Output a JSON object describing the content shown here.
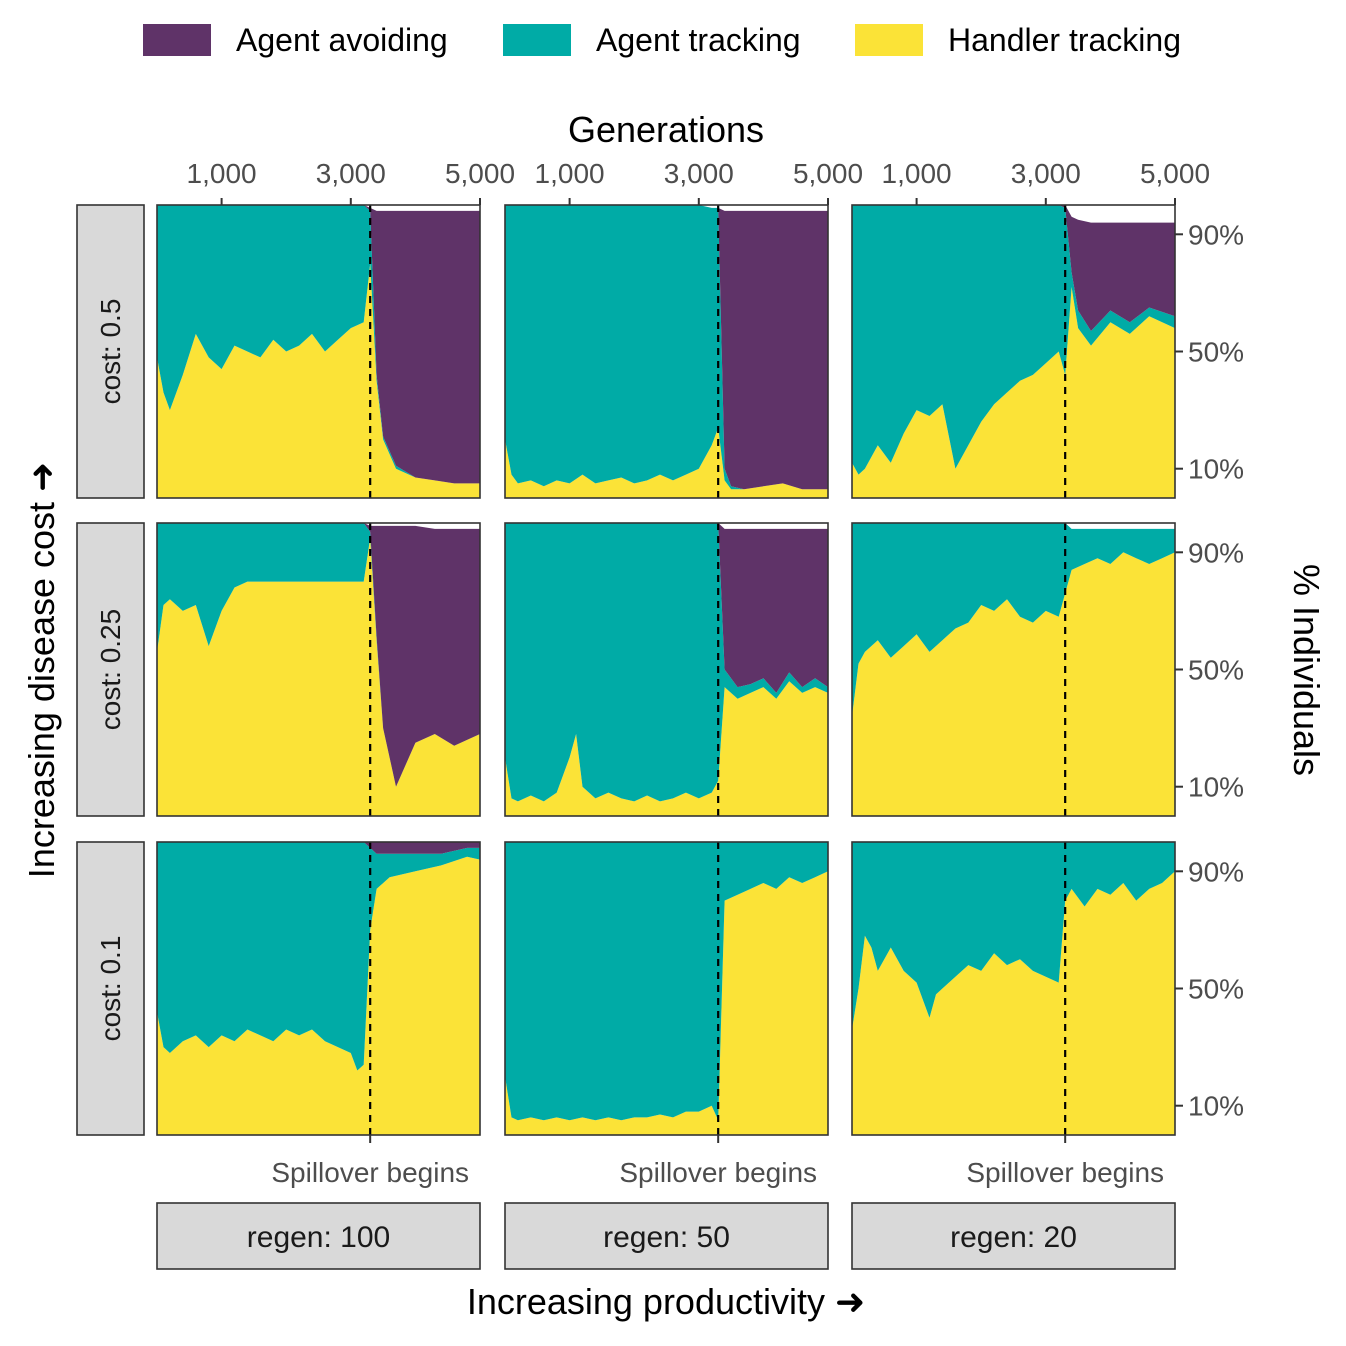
{
  "legend": {
    "items": [
      {
        "label": "Agent avoiding",
        "color": "#5f3368"
      },
      {
        "label": "Agent tracking",
        "color": "#00aba6"
      },
      {
        "label": "Handler tracking",
        "color": "#fbe337"
      }
    ]
  },
  "colors": {
    "strip_fill": "#d9d9d9",
    "panel_border": "#333333",
    "dashed_line": "#000000",
    "tick_text": "#4d4d4d"
  },
  "chart_data": {
    "type": "area",
    "stacked": true,
    "facet_grid": true,
    "x_axis_title": "Generations",
    "x_axis_position": "top",
    "x_ticks": [
      1000,
      3000,
      5000
    ],
    "x_tick_labels": [
      "1,000",
      "3,000",
      "5,000"
    ],
    "xlim": [
      0,
      5000
    ],
    "y_axis_title": "% Individuals",
    "y_axis_position": "right",
    "y_ticks": [
      0.1,
      0.5,
      0.9
    ],
    "y_tick_labels": [
      "10%",
      "50%",
      "90%"
    ],
    "ylim": [
      0,
      1
    ],
    "row_axis_title": "Increasing disease cost ➜",
    "col_axis_title": "Increasing productivity ➜",
    "annotation": {
      "label": "Spillover begins",
      "x": 3300
    },
    "series_order": [
      "Handler tracking",
      "Agent tracking",
      "Agent avoiding"
    ],
    "rows": [
      {
        "label": "cost: 0.5"
      },
      {
        "label": "cost: 0.25"
      },
      {
        "label": "cost: 0.1"
      }
    ],
    "cols": [
      {
        "label": "regen: 100"
      },
      {
        "label": "regen: 50"
      },
      {
        "label": "regen: 20"
      }
    ],
    "panels": [
      {
        "row": 0,
        "col": 0,
        "x": [
          0,
          100,
          200,
          400,
          600,
          800,
          1000,
          1200,
          1400,
          1600,
          1800,
          2000,
          2200,
          2400,
          2600,
          2800,
          3000,
          3200,
          3300,
          3400,
          3500,
          3700,
          4000,
          4300,
          4600,
          5000
        ],
        "handler": [
          0.48,
          0.36,
          0.3,
          0.42,
          0.56,
          0.48,
          0.44,
          0.52,
          0.5,
          0.48,
          0.54,
          0.5,
          0.52,
          0.56,
          0.5,
          0.54,
          0.58,
          0.6,
          0.8,
          0.4,
          0.2,
          0.1,
          0.07,
          0.06,
          0.05,
          0.05
        ],
        "tracking": [
          0.52,
          0.64,
          0.7,
          0.58,
          0.44,
          0.52,
          0.56,
          0.48,
          0.5,
          0.52,
          0.46,
          0.5,
          0.48,
          0.44,
          0.5,
          0.46,
          0.42,
          0.4,
          0.18,
          0.02,
          0.01,
          0.01,
          0.0,
          0.0,
          0.0,
          0.0
        ],
        "avoiding": [
          0.0,
          0.0,
          0.0,
          0.0,
          0.0,
          0.0,
          0.0,
          0.0,
          0.0,
          0.0,
          0.0,
          0.0,
          0.0,
          0.0,
          0.0,
          0.0,
          0.0,
          0.0,
          0.01,
          0.56,
          0.77,
          0.87,
          0.91,
          0.92,
          0.93,
          0.93
        ]
      },
      {
        "row": 0,
        "col": 1,
        "x": [
          0,
          100,
          200,
          400,
          600,
          800,
          1000,
          1200,
          1400,
          1600,
          1800,
          2000,
          2200,
          2400,
          2600,
          2800,
          3000,
          3200,
          3300,
          3400,
          3500,
          3700,
          4000,
          4300,
          4600,
          5000
        ],
        "handler": [
          0.2,
          0.08,
          0.05,
          0.06,
          0.04,
          0.06,
          0.05,
          0.08,
          0.05,
          0.06,
          0.07,
          0.05,
          0.06,
          0.08,
          0.06,
          0.08,
          0.1,
          0.18,
          0.24,
          0.06,
          0.03,
          0.03,
          0.04,
          0.05,
          0.03,
          0.03
        ],
        "tracking": [
          0.8,
          0.92,
          0.95,
          0.94,
          0.96,
          0.94,
          0.95,
          0.92,
          0.95,
          0.94,
          0.93,
          0.95,
          0.94,
          0.92,
          0.94,
          0.92,
          0.9,
          0.81,
          0.75,
          0.04,
          0.01,
          0.0,
          0.0,
          0.0,
          0.0,
          0.0
        ],
        "avoiding": [
          0.0,
          0.0,
          0.0,
          0.0,
          0.0,
          0.0,
          0.0,
          0.0,
          0.0,
          0.0,
          0.0,
          0.0,
          0.0,
          0.0,
          0.0,
          0.0,
          0.0,
          0.0,
          0.0,
          0.88,
          0.94,
          0.95,
          0.94,
          0.93,
          0.95,
          0.95
        ]
      },
      {
        "row": 0,
        "col": 2,
        "x": [
          0,
          100,
          200,
          400,
          600,
          800,
          1000,
          1200,
          1400,
          1600,
          1800,
          2000,
          2200,
          2400,
          2600,
          2800,
          3000,
          3200,
          3300,
          3400,
          3500,
          3700,
          4000,
          4300,
          4600,
          5000
        ],
        "handler": [
          0.12,
          0.08,
          0.1,
          0.18,
          0.12,
          0.22,
          0.3,
          0.28,
          0.32,
          0.1,
          0.18,
          0.26,
          0.32,
          0.36,
          0.4,
          0.42,
          0.46,
          0.5,
          0.42,
          0.72,
          0.58,
          0.52,
          0.6,
          0.56,
          0.62,
          0.58
        ],
        "tracking": [
          0.88,
          0.92,
          0.9,
          0.82,
          0.88,
          0.78,
          0.7,
          0.72,
          0.68,
          0.9,
          0.82,
          0.74,
          0.68,
          0.64,
          0.6,
          0.58,
          0.54,
          0.5,
          0.57,
          0.05,
          0.06,
          0.05,
          0.04,
          0.04,
          0.03,
          0.04
        ],
        "avoiding": [
          0.0,
          0.0,
          0.0,
          0.0,
          0.0,
          0.0,
          0.0,
          0.0,
          0.0,
          0.0,
          0.0,
          0.0,
          0.0,
          0.0,
          0.0,
          0.0,
          0.0,
          0.0,
          0.01,
          0.19,
          0.31,
          0.37,
          0.3,
          0.34,
          0.29,
          0.32
        ]
      },
      {
        "row": 1,
        "col": 0,
        "x": [
          0,
          100,
          200,
          400,
          600,
          800,
          1000,
          1200,
          1400,
          1600,
          1800,
          2000,
          2200,
          2400,
          2600,
          2800,
          3000,
          3200,
          3300,
          3400,
          3500,
          3700,
          3800,
          4000,
          4300,
          4600,
          5000
        ],
        "handler": [
          0.56,
          0.72,
          0.74,
          0.7,
          0.72,
          0.58,
          0.7,
          0.78,
          0.8,
          0.8,
          0.8,
          0.8,
          0.8,
          0.8,
          0.8,
          0.8,
          0.8,
          0.8,
          0.95,
          0.6,
          0.3,
          0.1,
          0.15,
          0.25,
          0.28,
          0.24,
          0.28
        ],
        "tracking": [
          0.44,
          0.28,
          0.26,
          0.3,
          0.28,
          0.42,
          0.3,
          0.22,
          0.2,
          0.2,
          0.2,
          0.2,
          0.2,
          0.2,
          0.2,
          0.2,
          0.2,
          0.2,
          0.02,
          0.01,
          0.0,
          0.0,
          0.0,
          0.0,
          0.0,
          0.0,
          0.0
        ],
        "avoiding": [
          0.0,
          0.0,
          0.0,
          0.0,
          0.0,
          0.0,
          0.0,
          0.0,
          0.0,
          0.0,
          0.0,
          0.0,
          0.0,
          0.0,
          0.0,
          0.0,
          0.0,
          0.0,
          0.02,
          0.38,
          0.69,
          0.89,
          0.84,
          0.74,
          0.7,
          0.74,
          0.7
        ]
      },
      {
        "row": 1,
        "col": 1,
        "x": [
          0,
          100,
          200,
          400,
          600,
          800,
          1000,
          1100,
          1200,
          1400,
          1600,
          1800,
          2000,
          2200,
          2400,
          2600,
          2800,
          3000,
          3200,
          3300,
          3400,
          3600,
          3800,
          4000,
          4200,
          4400,
          4600,
          4800,
          5000
        ],
        "handler": [
          0.2,
          0.06,
          0.05,
          0.07,
          0.05,
          0.08,
          0.2,
          0.28,
          0.1,
          0.06,
          0.08,
          0.06,
          0.05,
          0.07,
          0.05,
          0.06,
          0.08,
          0.06,
          0.08,
          0.12,
          0.44,
          0.4,
          0.42,
          0.44,
          0.4,
          0.46,
          0.42,
          0.44,
          0.42
        ],
        "tracking": [
          0.8,
          0.94,
          0.95,
          0.93,
          0.95,
          0.92,
          0.8,
          0.72,
          0.9,
          0.94,
          0.92,
          0.94,
          0.95,
          0.93,
          0.95,
          0.94,
          0.92,
          0.94,
          0.92,
          0.88,
          0.06,
          0.04,
          0.03,
          0.03,
          0.02,
          0.03,
          0.02,
          0.03,
          0.02
        ],
        "avoiding": [
          0.0,
          0.0,
          0.0,
          0.0,
          0.0,
          0.0,
          0.0,
          0.0,
          0.0,
          0.0,
          0.0,
          0.0,
          0.0,
          0.0,
          0.0,
          0.0,
          0.0,
          0.0,
          0.0,
          0.0,
          0.48,
          0.54,
          0.53,
          0.51,
          0.56,
          0.49,
          0.54,
          0.51,
          0.54
        ]
      },
      {
        "row": 1,
        "col": 2,
        "x": [
          0,
          100,
          200,
          400,
          600,
          800,
          1000,
          1200,
          1400,
          1600,
          1800,
          2000,
          2200,
          2400,
          2600,
          2800,
          3000,
          3200,
          3300,
          3400,
          3600,
          3800,
          4000,
          4200,
          4400,
          4600,
          4800,
          5000
        ],
        "handler": [
          0.34,
          0.52,
          0.56,
          0.6,
          0.54,
          0.58,
          0.62,
          0.56,
          0.6,
          0.64,
          0.66,
          0.72,
          0.7,
          0.74,
          0.68,
          0.66,
          0.7,
          0.68,
          0.76,
          0.84,
          0.86,
          0.88,
          0.86,
          0.9,
          0.88,
          0.86,
          0.88,
          0.9
        ],
        "tracking": [
          0.66,
          0.48,
          0.44,
          0.4,
          0.46,
          0.42,
          0.38,
          0.44,
          0.4,
          0.36,
          0.34,
          0.28,
          0.3,
          0.26,
          0.32,
          0.34,
          0.3,
          0.32,
          0.24,
          0.14,
          0.12,
          0.1,
          0.12,
          0.08,
          0.1,
          0.12,
          0.1,
          0.08
        ],
        "avoiding": [
          0.0,
          0.0,
          0.0,
          0.0,
          0.0,
          0.0,
          0.0,
          0.0,
          0.0,
          0.0,
          0.0,
          0.0,
          0.0,
          0.0,
          0.0,
          0.0,
          0.0,
          0.0,
          0.0,
          0.0,
          0.0,
          0.0,
          0.0,
          0.0,
          0.0,
          0.0,
          0.0,
          0.0
        ]
      },
      {
        "row": 2,
        "col": 0,
        "x": [
          0,
          100,
          200,
          400,
          600,
          800,
          1000,
          1200,
          1400,
          1600,
          1800,
          2000,
          2200,
          2400,
          2600,
          2800,
          3000,
          3100,
          3200,
          3300,
          3400,
          3600,
          4000,
          4400,
          4800,
          5000
        ],
        "handler": [
          0.42,
          0.3,
          0.28,
          0.32,
          0.34,
          0.3,
          0.34,
          0.32,
          0.36,
          0.34,
          0.32,
          0.36,
          0.34,
          0.36,
          0.32,
          0.3,
          0.28,
          0.22,
          0.24,
          0.7,
          0.84,
          0.88,
          0.9,
          0.92,
          0.95,
          0.94
        ],
        "tracking": [
          0.58,
          0.7,
          0.72,
          0.68,
          0.66,
          0.7,
          0.66,
          0.68,
          0.64,
          0.66,
          0.68,
          0.64,
          0.66,
          0.64,
          0.68,
          0.7,
          0.72,
          0.78,
          0.76,
          0.28,
          0.12,
          0.08,
          0.06,
          0.04,
          0.03,
          0.04
        ],
        "avoiding": [
          0.0,
          0.0,
          0.0,
          0.0,
          0.0,
          0.0,
          0.0,
          0.0,
          0.0,
          0.0,
          0.0,
          0.0,
          0.0,
          0.0,
          0.0,
          0.0,
          0.0,
          0.0,
          0.0,
          0.02,
          0.04,
          0.04,
          0.04,
          0.04,
          0.02,
          0.02
        ]
      },
      {
        "row": 2,
        "col": 1,
        "x": [
          0,
          100,
          200,
          400,
          600,
          800,
          1000,
          1200,
          1400,
          1600,
          1800,
          2000,
          2200,
          2400,
          2600,
          2800,
          3000,
          3200,
          3300,
          3400,
          3600,
          3800,
          4000,
          4200,
          4400,
          4600,
          4800,
          5000
        ],
        "handler": [
          0.2,
          0.06,
          0.05,
          0.06,
          0.05,
          0.06,
          0.05,
          0.06,
          0.05,
          0.06,
          0.05,
          0.06,
          0.06,
          0.07,
          0.06,
          0.08,
          0.08,
          0.1,
          0.05,
          0.8,
          0.82,
          0.84,
          0.86,
          0.84,
          0.88,
          0.86,
          0.88,
          0.9
        ],
        "tracking": [
          0.8,
          0.94,
          0.95,
          0.94,
          0.95,
          0.94,
          0.95,
          0.94,
          0.95,
          0.94,
          0.95,
          0.94,
          0.94,
          0.93,
          0.94,
          0.92,
          0.92,
          0.9,
          0.95,
          0.2,
          0.18,
          0.16,
          0.14,
          0.16,
          0.12,
          0.14,
          0.12,
          0.1
        ],
        "avoiding": [
          0.0,
          0.0,
          0.0,
          0.0,
          0.0,
          0.0,
          0.0,
          0.0,
          0.0,
          0.0,
          0.0,
          0.0,
          0.0,
          0.0,
          0.0,
          0.0,
          0.0,
          0.0,
          0.0,
          0.0,
          0.0,
          0.0,
          0.0,
          0.0,
          0.0,
          0.0,
          0.0,
          0.0
        ]
      },
      {
        "row": 2,
        "col": 2,
        "x": [
          0,
          100,
          200,
          300,
          400,
          600,
          800,
          1000,
          1200,
          1300,
          1400,
          1600,
          1800,
          2000,
          2200,
          2400,
          2600,
          2800,
          3000,
          3200,
          3300,
          3400,
          3600,
          3800,
          4000,
          4200,
          4400,
          4600,
          4800,
          5000
        ],
        "handler": [
          0.36,
          0.5,
          0.68,
          0.64,
          0.56,
          0.64,
          0.56,
          0.52,
          0.4,
          0.48,
          0.5,
          0.54,
          0.58,
          0.56,
          0.62,
          0.58,
          0.6,
          0.56,
          0.54,
          0.52,
          0.8,
          0.84,
          0.78,
          0.84,
          0.82,
          0.86,
          0.8,
          0.84,
          0.86,
          0.9
        ],
        "tracking": [
          0.64,
          0.5,
          0.32,
          0.36,
          0.44,
          0.36,
          0.44,
          0.48,
          0.6,
          0.52,
          0.5,
          0.46,
          0.42,
          0.44,
          0.38,
          0.42,
          0.4,
          0.44,
          0.46,
          0.48,
          0.2,
          0.16,
          0.22,
          0.16,
          0.18,
          0.14,
          0.2,
          0.16,
          0.14,
          0.1
        ],
        "avoiding": [
          0.0,
          0.0,
          0.0,
          0.0,
          0.0,
          0.0,
          0.0,
          0.0,
          0.0,
          0.0,
          0.0,
          0.0,
          0.0,
          0.0,
          0.0,
          0.0,
          0.0,
          0.0,
          0.0,
          0.0,
          0.0,
          0.0,
          0.0,
          0.0,
          0.0,
          0.0,
          0.0,
          0.0,
          0.0,
          0.0
        ]
      }
    ]
  }
}
